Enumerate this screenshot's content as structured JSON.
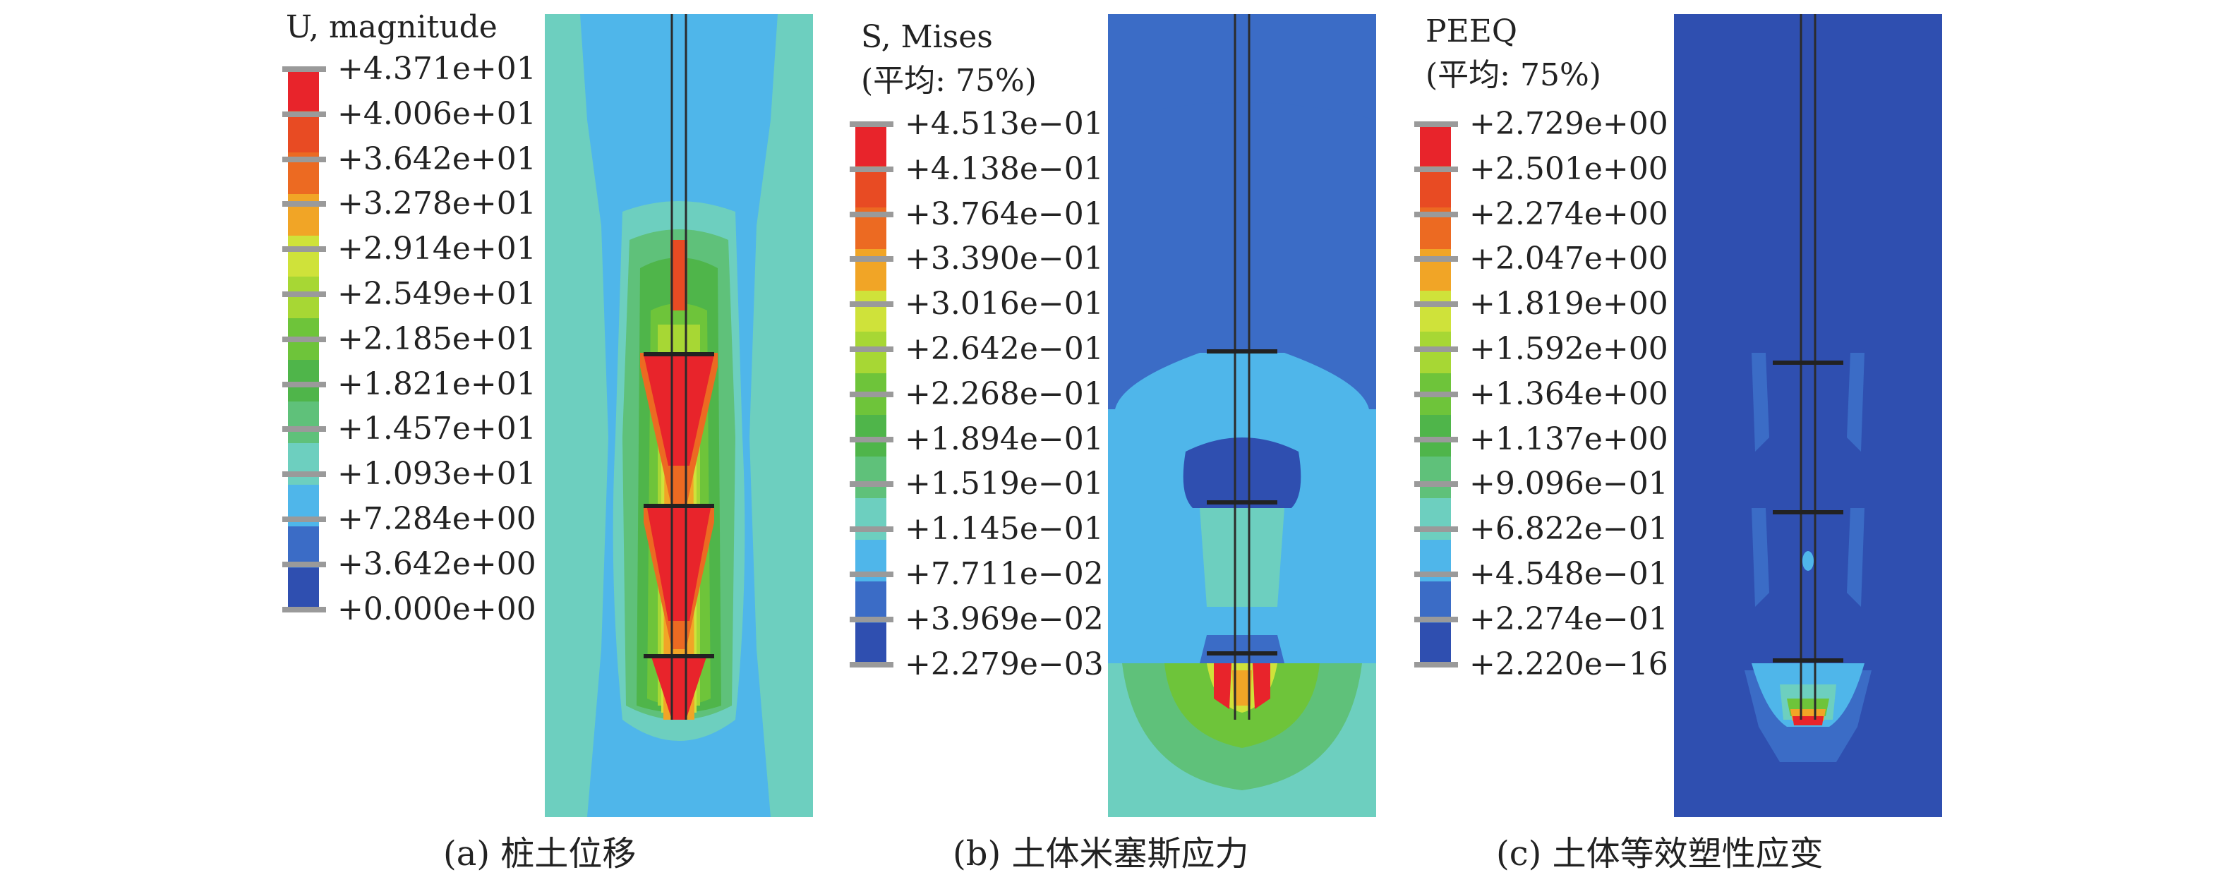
{
  "colorscale": [
    "#e8242b",
    "#e84b23",
    "#ec6a22",
    "#f1a526",
    "#cfe23a",
    "#a7d734",
    "#6ec43a",
    "#4fb54a",
    "#5fc17a",
    "#6dcfbf",
    "#4fb6ea",
    "#3b6cc6",
    "#2f4fb0"
  ],
  "panels": [
    {
      "id": "a",
      "legend_title": [
        "U, magnitude"
      ],
      "labels": [
        "+4.371e+01",
        "+4.006e+01",
        "+3.642e+01",
        "+3.278e+01",
        "+2.914e+01",
        "+2.549e+01",
        "+2.185e+01",
        "+1.821e+01",
        "+1.457e+01",
        "+1.093e+01",
        "+7.284e+00",
        "+3.642e+00",
        "+0.000e+00"
      ],
      "caption": "(a) 桩土位移"
    },
    {
      "id": "b",
      "legend_title": [
        "S, Mises",
        "(平均: 75%)"
      ],
      "labels": [
        "+4.513e−01",
        "+4.138e−01",
        "+3.764e−01",
        "+3.390e−01",
        "+3.016e−01",
        "+2.642e−01",
        "+2.268e−01",
        "+1.894e−01",
        "+1.519e−01",
        "+1.145e−01",
        "+7.711e−02",
        "+3.969e−02",
        "+2.279e−03"
      ],
      "caption": "(b) 土体米塞斯应力"
    },
    {
      "id": "c",
      "legend_title": [
        "PEEQ",
        "(平均: 75%)"
      ],
      "labels": [
        "+2.729e+00",
        "+2.501e+00",
        "+2.274e+00",
        "+2.047e+00",
        "+1.819e+00",
        "+1.592e+00",
        "+1.364e+00",
        "+1.137e+00",
        "+9.096e−01",
        "+6.822e−01",
        "+4.548e−01",
        "+2.274e−01",
        "+2.220e−16"
      ],
      "caption": "(c) 土体等效塑性应变"
    }
  ]
}
